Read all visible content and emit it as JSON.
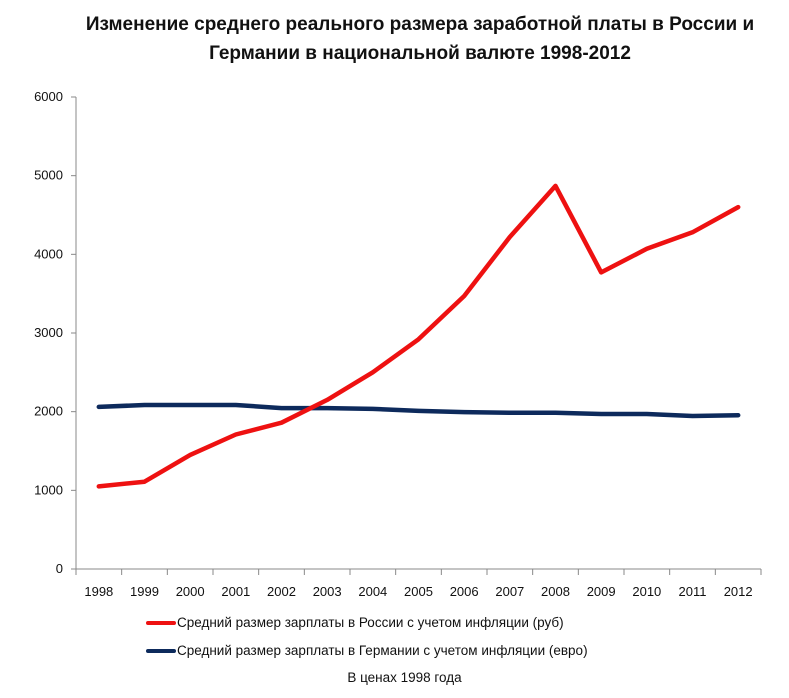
{
  "chart_data": {
    "type": "line",
    "title": "Изменение среднего реального размера заработной платы в России и Германии в национальной валюте 1998-2012",
    "categories": [
      "1998",
      "1999",
      "2000",
      "2001",
      "2002",
      "2003",
      "2004",
      "2005",
      "2006",
      "2007",
      "2008",
      "2009",
      "2010",
      "2011",
      "2012"
    ],
    "yticks": [
      "0",
      "1000",
      "2000",
      "3000",
      "4000",
      "5000",
      "6000"
    ],
    "ylim": [
      0,
      6000
    ],
    "grid": false,
    "legend_position": "bottom",
    "series": [
      {
        "name": "Средний размер зарплаты в России с учетом инфляции (руб)",
        "color": "#ee1111",
        "values": [
          1050,
          1110,
          1450,
          1710,
          1860,
          2150,
          2500,
          2920,
          3470,
          4220,
          4870,
          3770,
          4070,
          4280,
          4600
        ]
      },
      {
        "name": "Средний размер зарплаты в Германии с учетом инфляции (евро)",
        "color": "#0d2a5c",
        "values": [
          2060,
          2085,
          2085,
          2085,
          2045,
          2045,
          2035,
          2010,
          1995,
          1985,
          1985,
          1970,
          1970,
          1945,
          1955
        ]
      }
    ],
    "note": "В ценах 1998 года"
  }
}
